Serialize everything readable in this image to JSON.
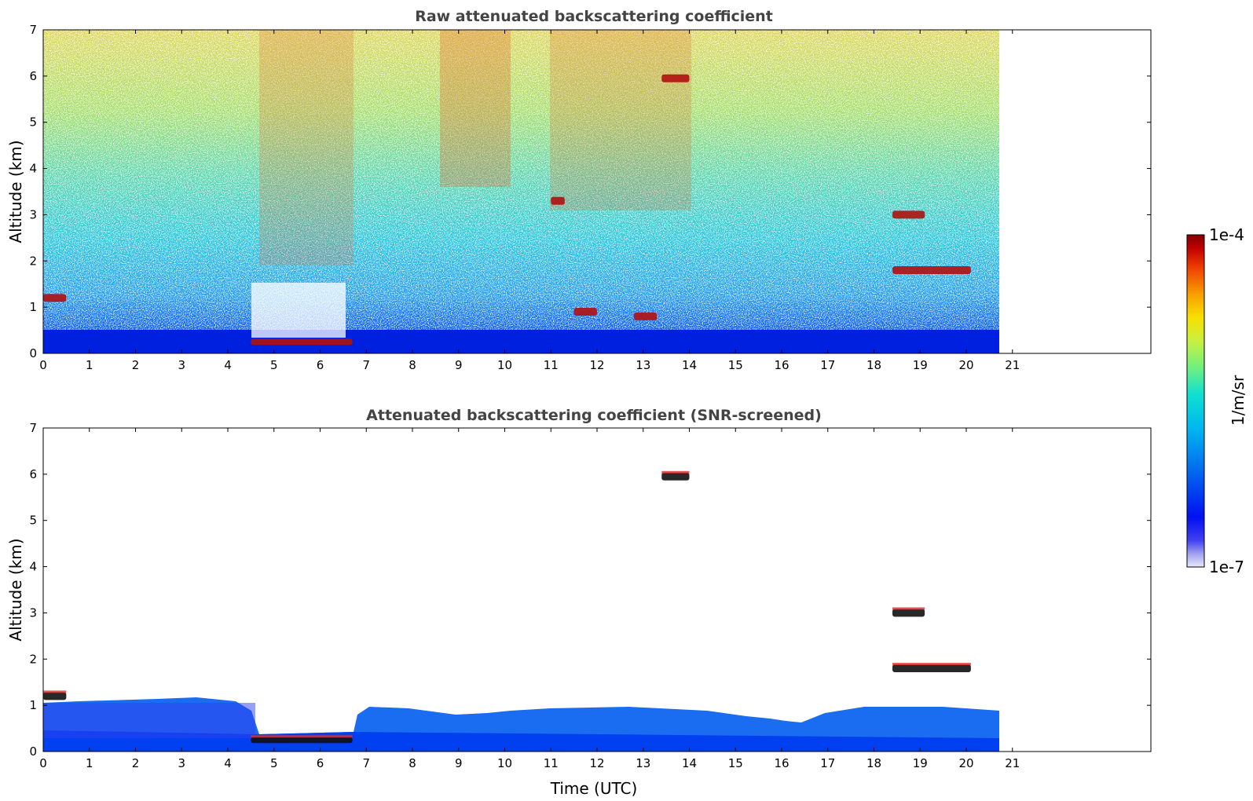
{
  "chart_data": [
    {
      "type": "heatmap",
      "title": "Raw attenuated backscattering coefficient",
      "xlabel": "",
      "ylabel": "Altitude (km)",
      "xlim": [
        0,
        24
      ],
      "ylim": [
        0,
        7
      ],
      "xticks": [
        "0",
        "1",
        "2",
        "3",
        "4",
        "5",
        "6",
        "7",
        "8",
        "9",
        "10",
        "11",
        "12",
        "13",
        "14",
        "15",
        "16",
        "17",
        "18",
        "19",
        "20",
        "21"
      ],
      "yticks": [
        "0",
        "1",
        "2",
        "3",
        "4",
        "5",
        "6",
        "7"
      ],
      "data_extent_hours": [
        0,
        20.8
      ],
      "features": [
        {
          "name": "boundary-layer",
          "time_range": [
            0,
            20.8
          ],
          "top_km": 0.4
        },
        {
          "name": "low-cloud-layer",
          "time_range": [
            4.5,
            6.7
          ],
          "altitude_km": 0.25
        },
        {
          "name": "cloud-1",
          "time_range": [
            0,
            0.5
          ],
          "altitude_km": 1.2
        },
        {
          "name": "cloud-2",
          "time_range": [
            11.5,
            12.0
          ],
          "altitude_km": 0.9
        },
        {
          "name": "cloud-3",
          "time_range": [
            12.8,
            13.3
          ],
          "altitude_km": 0.8
        },
        {
          "name": "cloud-4",
          "time_range": [
            18.4,
            20.1
          ],
          "altitude_km": 1.8
        },
        {
          "name": "cloud-5",
          "time_range": [
            13.4,
            14.0
          ],
          "altitude_km": 5.95
        },
        {
          "name": "cloud-6",
          "time_range": [
            18.4,
            19.1
          ],
          "altitude_km": 3.0
        },
        {
          "name": "cloud-7",
          "time_range": [
            11.0,
            11.3
          ],
          "altitude_km": 3.3
        }
      ]
    },
    {
      "type": "heatmap",
      "title": "Attenuated backscattering coefficient (SNR-screened)",
      "xlabel": "Time (UTC)",
      "ylabel": "Altitude (km)",
      "xlim": [
        0,
        24
      ],
      "ylim": [
        0,
        7
      ],
      "xticks": [
        "0",
        "1",
        "2",
        "3",
        "4",
        "5",
        "6",
        "7",
        "8",
        "9",
        "10",
        "11",
        "12",
        "13",
        "14",
        "15",
        "16",
        "17",
        "18",
        "19",
        "20",
        "21"
      ],
      "yticks": [
        "0",
        "1",
        "2",
        "3",
        "4",
        "5",
        "6",
        "7"
      ],
      "data_extent_hours": [
        0,
        20.8
      ],
      "features": [
        {
          "name": "boundary-layer",
          "time_range": [
            0,
            20.8
          ],
          "top_km": 0.8
        },
        {
          "name": "low-cloud-layer",
          "time_range": [
            4.5,
            6.7
          ],
          "altitude_km": 0.25
        },
        {
          "name": "cloud-1",
          "time_range": [
            0,
            0.5
          ],
          "altitude_km": 1.2
        },
        {
          "name": "cloud-4",
          "time_range": [
            18.4,
            20.1
          ],
          "altitude_km": 1.8
        },
        {
          "name": "cloud-5",
          "time_range": [
            13.4,
            14.0
          ],
          "altitude_km": 5.95
        },
        {
          "name": "cloud-6",
          "time_range": [
            18.4,
            19.1
          ],
          "altitude_km": 3.0
        }
      ]
    }
  ],
  "colorbar": {
    "label": "1/m/sr",
    "max_label": "1e-4",
    "min_label": "1e-7",
    "range": [
      1e-07,
      0.0001
    ],
    "colors": [
      "#e8e8f8",
      "#c0c0f0",
      "#8080f0",
      "#3030f0",
      "#0000f0",
      "#0040f0",
      "#0080f0",
      "#00b0f0",
      "#00d8e0",
      "#40e8a0",
      "#90f060",
      "#d0f030",
      "#f8e000",
      "#f8a000",
      "#f06000",
      "#e02000",
      "#b00000",
      "#800000"
    ]
  }
}
